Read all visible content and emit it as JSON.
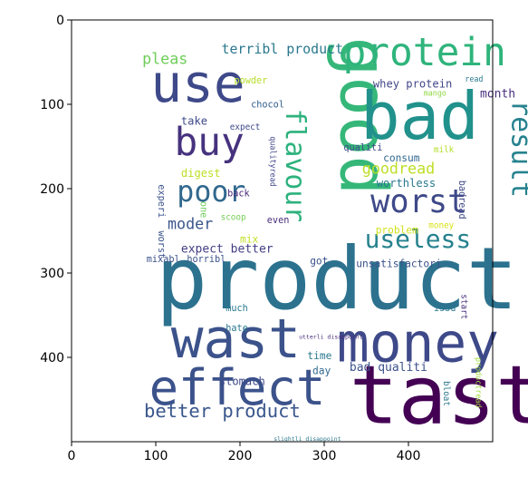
{
  "chart_data": {
    "type": "wordcloud",
    "title": "",
    "xlabel": "",
    "ylabel": "",
    "xlim": [
      0,
      500
    ],
    "ylim": [
      500,
      0
    ],
    "xticks": [
      0,
      100,
      200,
      300,
      400
    ],
    "yticks": [
      0,
      100,
      200,
      300,
      400
    ],
    "grid": false,
    "background": "#ffffff",
    "words": [
      {
        "text": "product",
        "x": 100,
        "y": 342,
        "size": 102,
        "color": "#2c728e",
        "rotate": 0
      },
      {
        "text": "tast",
        "x": 330,
        "y": 478,
        "size": 96,
        "color": "#440154",
        "rotate": 0
      },
      {
        "text": "good",
        "x": 320,
        "y": 20,
        "size": 78,
        "color": "#35b779",
        "rotate": 90
      },
      {
        "text": "bad",
        "x": 343,
        "y": 141,
        "size": 78,
        "color": "#21918c",
        "rotate": 0
      },
      {
        "text": "money",
        "x": 315,
        "y": 405,
        "size": 64,
        "color": "#3e4989",
        "rotate": 0
      },
      {
        "text": "wast",
        "x": 118,
        "y": 400,
        "size": 64,
        "color": "#3b528b",
        "rotate": 0
      },
      {
        "text": "effect",
        "x": 92,
        "y": 456,
        "size": 58,
        "color": "#3b528b",
        "rotate": 0
      },
      {
        "text": "use",
        "x": 94,
        "y": 97,
        "size": 62,
        "color": "#3e4989",
        "rotate": 0
      },
      {
        "text": "protein",
        "x": 322,
        "y": 54,
        "size": 46,
        "color": "#2fb47c",
        "rotate": 0
      },
      {
        "text": "buy",
        "x": 122,
        "y": 160,
        "size": 46,
        "color": "#46327e",
        "rotate": 0
      },
      {
        "text": "worst",
        "x": 355,
        "y": 228,
        "size": 38,
        "color": "#3e4989",
        "rotate": 0
      },
      {
        "text": "poor",
        "x": 125,
        "y": 215,
        "size": 34,
        "color": "#31688e",
        "rotate": 0
      },
      {
        "text": "flavour",
        "x": 255,
        "y": 105,
        "size": 32,
        "color": "#2db27d",
        "rotate": 90
      },
      {
        "text": "result",
        "x": 523,
        "y": 95,
        "size": 32,
        "color": "#26828e",
        "rotate": 90
      },
      {
        "text": "useless",
        "x": 348,
        "y": 270,
        "size": 30,
        "color": "#26828e",
        "rotate": 0
      },
      {
        "text": "better product",
        "x": 86,
        "y": 471,
        "size": 22,
        "color": "#39568c",
        "rotate": 0
      },
      {
        "text": "goodread",
        "x": 345,
        "y": 182,
        "size": 18,
        "color": "#bddf26",
        "rotate": 0
      },
      {
        "text": "moder",
        "x": 114,
        "y": 248,
        "size": 18,
        "color": "#39568c",
        "rotate": 0
      },
      {
        "text": "pleas",
        "x": 84,
        "y": 52,
        "size": 18,
        "color": "#6ece58",
        "rotate": 0
      },
      {
        "text": "terribl product",
        "x": 178,
        "y": 40,
        "size": 16,
        "color": "#2a788e",
        "rotate": 0
      },
      {
        "text": "expect better",
        "x": 130,
        "y": 276,
        "size": 14,
        "color": "#433e85",
        "rotate": 0
      },
      {
        "text": "bad qualiti",
        "x": 330,
        "y": 416,
        "size": 14,
        "color": "#3b528b",
        "rotate": 0
      },
      {
        "text": "whey protein",
        "x": 358,
        "y": 80,
        "size": 13,
        "color": "#404688",
        "rotate": 0
      },
      {
        "text": "month",
        "x": 485,
        "y": 92,
        "size": 14,
        "color": "#472d7b",
        "rotate": 0
      },
      {
        "text": "take",
        "x": 130,
        "y": 124,
        "size": 13,
        "color": "#3e4989",
        "rotate": 0
      },
      {
        "text": "digest",
        "x": 130,
        "y": 186,
        "size": 13,
        "color": "#bddf26",
        "rotate": 0
      },
      {
        "text": "worthless",
        "x": 362,
        "y": 198,
        "size": 13,
        "color": "#2a788e",
        "rotate": 0
      },
      {
        "text": "consum",
        "x": 370,
        "y": 168,
        "size": 12,
        "color": "#31688e",
        "rotate": 0
      },
      {
        "text": "qualiti",
        "x": 323,
        "y": 155,
        "size": 11,
        "color": "#3e4989",
        "rotate": 0
      },
      {
        "text": "problem",
        "x": 361,
        "y": 253,
        "size": 12,
        "color": "#d2e21b",
        "rotate": 0
      },
      {
        "text": "got",
        "x": 283,
        "y": 290,
        "size": 12,
        "color": "#3b528b",
        "rotate": 0
      },
      {
        "text": "unsatisfactori",
        "x": 338,
        "y": 293,
        "size": 12,
        "color": "#3b528b",
        "rotate": 0
      },
      {
        "text": "stomach",
        "x": 175,
        "y": 433,
        "size": 13,
        "color": "#3e4989",
        "rotate": 0
      },
      {
        "text": "time",
        "x": 280,
        "y": 402,
        "size": 12,
        "color": "#2a788e",
        "rotate": 0
      },
      {
        "text": "day",
        "x": 286,
        "y": 420,
        "size": 12,
        "color": "#31688e",
        "rotate": 0
      },
      {
        "text": "chocol",
        "x": 213,
        "y": 104,
        "size": 11,
        "color": "#34618d",
        "rotate": 0
      },
      {
        "text": "powder",
        "x": 193,
        "y": 75,
        "size": 11,
        "color": "#b5de2b",
        "rotate": 0
      },
      {
        "text": "expect",
        "x": 188,
        "y": 130,
        "size": 10,
        "color": "#3e4989",
        "rotate": 0
      },
      {
        "text": "qualityread",
        "x": 236,
        "y": 138,
        "size": 9,
        "color": "#404688",
        "rotate": 90
      },
      {
        "text": "back",
        "x": 185,
        "y": 209,
        "size": 11,
        "color": "#482878",
        "rotate": 0
      },
      {
        "text": "scoop",
        "x": 177,
        "y": 237,
        "size": 10,
        "color": "#74d055",
        "rotate": 0
      },
      {
        "text": "even",
        "x": 232,
        "y": 241,
        "size": 11,
        "color": "#472d7b",
        "rotate": 0
      },
      {
        "text": "mix",
        "x": 200,
        "y": 264,
        "size": 12,
        "color": "#c2df23",
        "rotate": 0
      },
      {
        "text": "one",
        "x": 153,
        "y": 215,
        "size": 11,
        "color": "#6ece58",
        "rotate": 90
      },
      {
        "text": "experi",
        "x": 103,
        "y": 195,
        "size": 11,
        "color": "#3b528b",
        "rotate": 90
      },
      {
        "text": "worst",
        "x": 103,
        "y": 250,
        "size": 11,
        "color": "#3b528b",
        "rotate": 90
      },
      {
        "text": "mixabl",
        "x": 89,
        "y": 287,
        "size": 11,
        "color": "#3b528b",
        "rotate": 0
      },
      {
        "text": "horribl",
        "x": 137,
        "y": 287,
        "size": 11,
        "color": "#3b528b",
        "rotate": 0
      },
      {
        "text": "mango",
        "x": 418,
        "y": 90,
        "size": 9,
        "color": "#8fd744",
        "rotate": 0
      },
      {
        "text": "read",
        "x": 467,
        "y": 73,
        "size": 9,
        "color": "#2a788e",
        "rotate": 0
      },
      {
        "text": "milk",
        "x": 430,
        "y": 157,
        "size": 10,
        "color": "#b5de2b",
        "rotate": 0
      },
      {
        "text": "badread",
        "x": 460,
        "y": 190,
        "size": 11,
        "color": "#3e4989",
        "rotate": 90
      },
      {
        "text": "money",
        "x": 424,
        "y": 247,
        "size": 10,
        "color": "#d8e219",
        "rotate": 0
      },
      {
        "text": "much",
        "x": 183,
        "y": 345,
        "size": 11,
        "color": "#2a788e",
        "rotate": 0
      },
      {
        "text": "hate",
        "x": 183,
        "y": 369,
        "size": 11,
        "color": "#2a788e",
        "rotate": 0
      },
      {
        "text": "issu",
        "x": 430,
        "y": 345,
        "size": 11,
        "color": "#2a788e",
        "rotate": 0
      },
      {
        "text": "start",
        "x": 463,
        "y": 325,
        "size": 10,
        "color": "#472d7b",
        "rotate": 90
      },
      {
        "text": "utterli disappoint",
        "x": 270,
        "y": 378,
        "size": 7,
        "color": "#472d7b",
        "rotate": 0
      },
      {
        "text": "bloat",
        "x": 442,
        "y": 428,
        "size": 10,
        "color": "#2a788e",
        "rotate": 90
      },
      {
        "text": "productread",
        "x": 480,
        "y": 400,
        "size": 9,
        "color": "#a0da39",
        "rotate": 90
      },
      {
        "text": "slightli disappoint",
        "x": 240,
        "y": 499,
        "size": 7,
        "color": "#2a788e",
        "rotate": 0
      }
    ]
  }
}
